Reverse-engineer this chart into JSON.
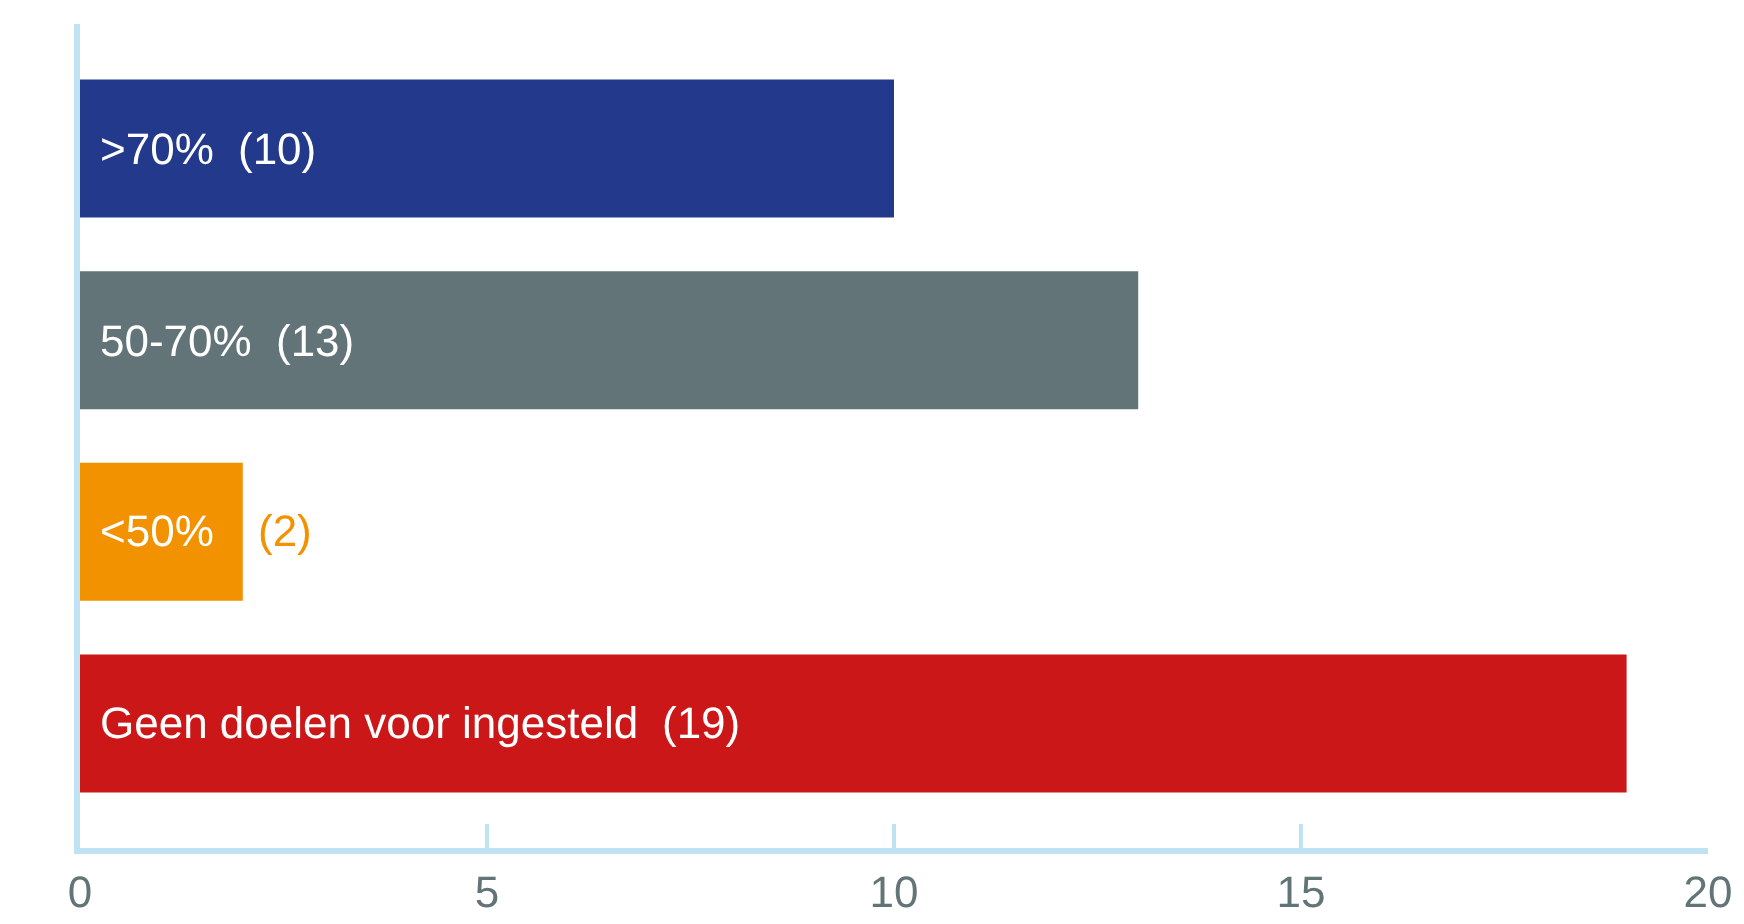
{
  "chart_data": {
    "type": "bar",
    "orientation": "horizontal",
    "categories": [
      ">70%",
      "50-70%",
      "<50%",
      "Geen doelen voor ingesteld"
    ],
    "values": [
      10,
      13,
      2,
      19
    ],
    "colors": [
      "#233a8c",
      "#637479",
      "#f39200",
      "#cc1719"
    ],
    "value_labels": [
      "(10)",
      "(13)",
      "(2)",
      "(19)"
    ],
    "xlim": [
      0,
      20
    ],
    "xticks": [
      0,
      5,
      10,
      15,
      20
    ],
    "tick_labels": "x"
  }
}
